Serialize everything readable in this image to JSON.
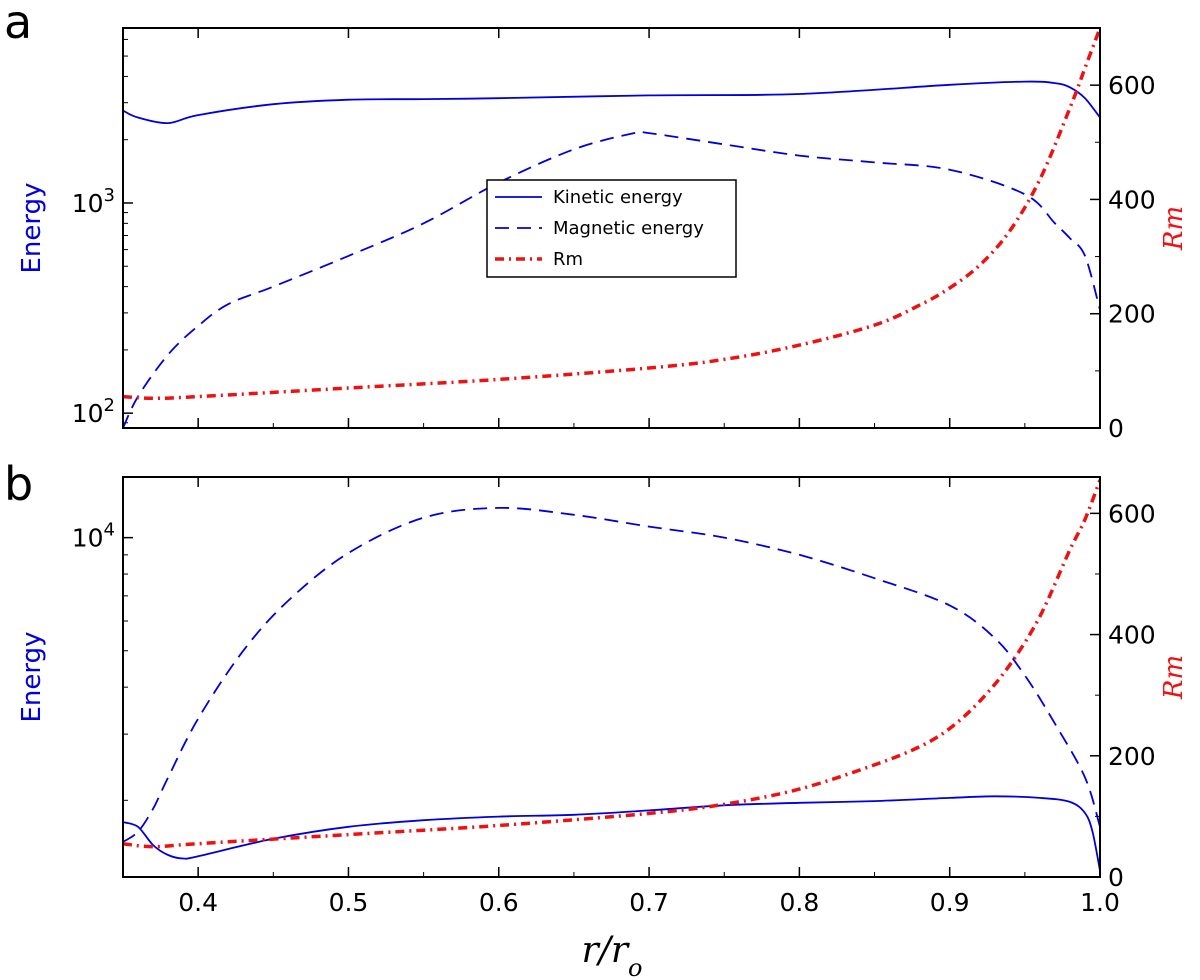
{
  "chart_data": [
    {
      "panel": "a",
      "type": "line",
      "xlabel": "r/r",
      "xlabel_sub": "o",
      "ylabel_left": "Energy",
      "ylabel_right": "Rm",
      "xlim": [
        0.35,
        1.0
      ],
      "ylim_left": [
        85,
        6800
      ],
      "ylim_left_scale": "log",
      "ylim_right": [
        0,
        700
      ],
      "x_ticks": [
        0.4,
        0.5,
        0.6,
        0.7,
        0.8,
        0.9,
        1.0
      ],
      "y_left_ticks": [
        {
          "value": 100,
          "base": "10",
          "exp": "2"
        },
        {
          "value": 1000,
          "base": "10",
          "exp": "3"
        }
      ],
      "y_right_ticks": [
        0,
        200,
        400,
        600
      ],
      "legend": [
        "Kinetic energy",
        "Magnetic energy",
        "Rm"
      ],
      "legend_position": "center",
      "series": [
        {
          "name": "Kinetic energy",
          "axis": "left",
          "style": "solid",
          "color": "#0000dd",
          "x": [
            0.35,
            0.36,
            0.38,
            0.4,
            0.45,
            0.5,
            0.55,
            0.6,
            0.7,
            0.8,
            0.9,
            0.95,
            0.97,
            0.98,
            0.99,
            1.0
          ],
          "y": [
            2750,
            2550,
            2400,
            2620,
            2950,
            3100,
            3120,
            3150,
            3250,
            3300,
            3650,
            3780,
            3720,
            3550,
            3150,
            2550
          ]
        },
        {
          "name": "Magnetic energy",
          "axis": "left",
          "style": "dashed",
          "color": "#0000dd",
          "x": [
            0.35,
            0.36,
            0.38,
            0.4,
            0.42,
            0.45,
            0.5,
            0.55,
            0.6,
            0.65,
            0.69,
            0.7,
            0.75,
            0.8,
            0.85,
            0.9,
            0.95,
            0.97,
            0.98,
            0.99,
            1.0
          ],
          "y": [
            85,
            120,
            190,
            260,
            330,
            400,
            560,
            800,
            1250,
            1800,
            2150,
            2150,
            1900,
            1680,
            1560,
            1440,
            1100,
            800,
            680,
            560,
            310
          ]
        },
        {
          "name": "Rm",
          "axis": "right",
          "style": "dashdot",
          "color": "#ee1111",
          "x": [
            0.35,
            0.37,
            0.4,
            0.5,
            0.6,
            0.7,
            0.75,
            0.8,
            0.85,
            0.88,
            0.9,
            0.92,
            0.94,
            0.96,
            0.98,
            0.99,
            1.0
          ],
          "y": [
            55,
            52,
            55,
            70,
            85,
            105,
            120,
            145,
            180,
            215,
            245,
            285,
            345,
            435,
            560,
            630,
            700
          ]
        }
      ]
    },
    {
      "panel": "b",
      "type": "line",
      "xlabel": "r/r",
      "xlabel_sub": "o",
      "ylabel_left": "Energy",
      "ylabel_right": "Rm",
      "xlim": [
        0.35,
        1.0
      ],
      "ylim_left": [
        1250,
        14500
      ],
      "ylim_left_scale": "log",
      "ylim_right": [
        0,
        660
      ],
      "x_ticks": [
        0.4,
        0.5,
        0.6,
        0.7,
        0.8,
        0.9,
        1.0
      ],
      "y_left_ticks": [
        {
          "value": 10000,
          "base": "10",
          "exp": "4"
        }
      ],
      "y_right_ticks": [
        0,
        200,
        400,
        600
      ],
      "series": [
        {
          "name": "Kinetic energy",
          "axis": "left",
          "style": "solid",
          "color": "#0000dd",
          "x": [
            0.35,
            0.36,
            0.37,
            0.38,
            0.39,
            0.4,
            0.45,
            0.5,
            0.55,
            0.6,
            0.65,
            0.7,
            0.75,
            0.8,
            0.85,
            0.9,
            0.93,
            0.96,
            0.98,
            0.99,
            0.995,
            1.0
          ],
          "y": [
            1750,
            1700,
            1520,
            1430,
            1400,
            1420,
            1580,
            1700,
            1770,
            1810,
            1830,
            1880,
            1940,
            1970,
            1990,
            2030,
            2050,
            2030,
            1980,
            1850,
            1650,
            1300
          ]
        },
        {
          "name": "Magnetic energy",
          "axis": "left",
          "style": "dashed",
          "color": "#0000dd",
          "x": [
            0.35,
            0.36,
            0.37,
            0.38,
            0.4,
            0.43,
            0.46,
            0.5,
            0.55,
            0.6,
            0.65,
            0.7,
            0.75,
            0.8,
            0.85,
            0.9,
            0.93,
            0.95,
            0.97,
            0.99,
            1.0
          ],
          "y": [
            1550,
            1650,
            1900,
            2300,
            3300,
            5000,
            6800,
            9100,
            11300,
            12000,
            11500,
            10700,
            10000,
            9000,
            7800,
            6600,
            5400,
            4300,
            3200,
            2300,
            1700
          ]
        },
        {
          "name": "Rm",
          "axis": "right",
          "style": "dashdot",
          "color": "#ee1111",
          "x": [
            0.35,
            0.37,
            0.4,
            0.5,
            0.6,
            0.7,
            0.75,
            0.8,
            0.85,
            0.88,
            0.9,
            0.92,
            0.94,
            0.96,
            0.98,
            0.99,
            1.0
          ],
          "y": [
            55,
            50,
            55,
            70,
            85,
            105,
            120,
            145,
            185,
            215,
            245,
            290,
            350,
            430,
            540,
            590,
            655
          ]
        }
      ]
    }
  ],
  "colors": {
    "kinetic": "#0000dd",
    "magnetic": "#0000dd",
    "rm": "#ee1111",
    "axis_left_label": "#0000dd",
    "axis_right_label": "#ee1111"
  }
}
